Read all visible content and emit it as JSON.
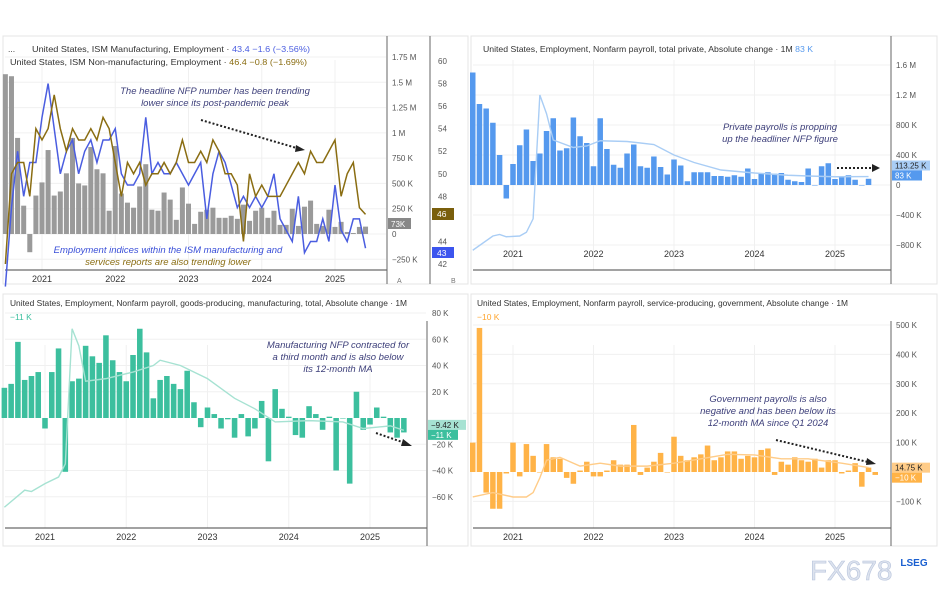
{
  "chart_data": [
    {
      "type": "bar+line",
      "title": "United States, ISM Manufacturing, Employment",
      "title_prefix": "...",
      "ism_mfg": {
        "label": "United States, ISM Manufacturing, Employment ·",
        "value": "43.4",
        "change": "−1.6 (−3.56%)",
        "color": "#4a5de0"
      },
      "ism_svc": {
        "label": "United States, ISM Non-manufacturing, Employment ·",
        "value": "46.4",
        "change": "−0.8 (−1.69%)",
        "color": "#8a6d12"
      },
      "bar_color": "#9a9a9a",
      "last_label": "73K",
      "mfg_badge": "43",
      "svc_badge": "46",
      "axis_a": "A",
      "axis_b": "B",
      "annotation1": [
        "The headline NFP number has been trending",
        "lower since its post-pandemic peak"
      ],
      "annotation2": [
        "Employment indices within the ISM manufacturing and",
        "services reports are also trending lower"
      ],
      "yticks": [
        {
          "v": 1750,
          "l": "1.75 M"
        },
        {
          "v": 1500,
          "l": "1.5 M"
        },
        {
          "v": 1250,
          "l": "1.25 M"
        },
        {
          "v": 1000,
          "l": "1 M"
        },
        {
          "v": 750,
          "l": "750 K"
        },
        {
          "v": 500,
          "l": "500 K"
        },
        {
          "v": 250,
          "l": "250 K"
        },
        {
          "v": 0,
          "l": "0"
        },
        {
          "v": -250,
          "l": "−250 K"
        }
      ],
      "y2ticks": [
        60,
        58,
        56,
        54,
        52,
        50,
        48,
        44,
        42
      ],
      "years": [
        "2021",
        "2022",
        "2023",
        "2024",
        "2025"
      ],
      "values": [
        1580,
        1560,
        950,
        280,
        -180,
        380,
        510,
        830,
        380,
        420,
        600,
        950,
        500,
        480,
        860,
        640,
        600,
        230,
        870,
        400,
        310,
        260,
        470,
        690,
        240,
        230,
        410,
        340,
        140,
        460,
        300,
        100,
        220,
        240,
        260,
        160,
        160,
        180,
        150,
        290,
        130,
        230,
        260,
        160,
        230,
        90,
        90,
        250,
        80,
        270,
        330,
        100,
        80,
        240,
        70,
        120,
        20,
        10,
        70,
        73
      ],
      "mfg": [
        40,
        47,
        52,
        48,
        51,
        51,
        55,
        58,
        54,
        50,
        52,
        53,
        50,
        52,
        53,
        51,
        53,
        53,
        54,
        50,
        49,
        49,
        50,
        55,
        50,
        51,
        50,
        50,
        51,
        50,
        49,
        50,
        51,
        46,
        50,
        52,
        51,
        49,
        47,
        48,
        47,
        48,
        47,
        48,
        50,
        46,
        45,
        44,
        48,
        43,
        44,
        44,
        46,
        44,
        49,
        45,
        44,
        46,
        46,
        43.4
      ],
      "svc": [
        42,
        50,
        51,
        51,
        48,
        54,
        53,
        54,
        57,
        54,
        52,
        54,
        53,
        53,
        54,
        53,
        55,
        54,
        51,
        48,
        51,
        50,
        51,
        49,
        50,
        50,
        51,
        50,
        51,
        53,
        51,
        51,
        52,
        51,
        53,
        52,
        50,
        50,
        49,
        44,
        50,
        48,
        49,
        48,
        48,
        48,
        49,
        50,
        51,
        50,
        52,
        51,
        51,
        52,
        53,
        48,
        50,
        51,
        47,
        46.4
      ]
    },
    {
      "type": "bar",
      "title": "United States, Employment, Nonfarm payroll, total private, Absolute change · 1M",
      "last": "83 K",
      "bar_color": "#5599ee",
      "ma_color": "#a9cdf5",
      "ma_badge": "113.25 K",
      "last_badge": "83 K",
      "annotation": [
        "Private payrolls is propping",
        "up the headliner NFP figure"
      ],
      "yticks": [
        {
          "v": 1600,
          "l": "1.6 M"
        },
        {
          "v": 1200,
          "l": "1.2 M"
        },
        {
          "v": 800,
          "l": "800 K"
        },
        {
          "v": 400,
          "l": "400 K"
        },
        {
          "v": 0,
          "l": "0"
        },
        {
          "v": -400,
          "l": "−400 K"
        },
        {
          "v": -800,
          "l": "−800 K"
        }
      ],
      "years": [
        "2021",
        "2022",
        "2023",
        "2024",
        "2025"
      ],
      "values": [
        1500,
        1080,
        1020,
        830,
        400,
        -180,
        280,
        530,
        740,
        320,
        420,
        720,
        890,
        460,
        490,
        900,
        650,
        560,
        250,
        890,
        480,
        270,
        230,
        420,
        540,
        250,
        230,
        380,
        240,
        140,
        340,
        260,
        50,
        170,
        170,
        170,
        120,
        120,
        110,
        130,
        110,
        220,
        80,
        160,
        170,
        150,
        160,
        70,
        50,
        40,
        220,
        0,
        250,
        290,
        80,
        120,
        130,
        70,
        0,
        83
      ],
      "ma": [
        [
          0,
          -870
        ],
        [
          3,
          -680
        ],
        [
          4,
          -660
        ],
        [
          5,
          -690
        ],
        [
          7,
          -680
        ],
        [
          8,
          -630
        ],
        [
          9,
          -450
        ],
        [
          10,
          1200
        ],
        [
          11,
          950
        ],
        [
          12,
          600
        ],
        [
          15,
          500
        ],
        [
          17,
          520
        ],
        [
          19,
          590
        ],
        [
          23,
          580
        ],
        [
          27,
          540
        ],
        [
          30,
          400
        ],
        [
          33,
          300
        ],
        [
          37,
          200
        ],
        [
          42,
          160
        ],
        [
          47,
          130
        ],
        [
          50,
          120
        ],
        [
          54,
          110
        ],
        [
          59,
          113
        ]
      ]
    },
    {
      "type": "bar",
      "title": "United States, Employment, Nonfarm payroll, goods-producing, manufacturing, total, Absolute change · 1M",
      "last": "−11 K",
      "bar_color": "#3cbf9e",
      "ma_color": "#a6e2d2",
      "ma_badge": "−9.42 K",
      "last_badge": "−11 K",
      "annotation": [
        "Manufacturing NFP contracted for",
        "a third month and is also below",
        "its 12-month MA"
      ],
      "yticks": [
        {
          "v": 80,
          "l": "80 K"
        },
        {
          "v": 60,
          "l": "60 K"
        },
        {
          "v": 40,
          "l": "40 K"
        },
        {
          "v": 20,
          "l": "20 K"
        },
        {
          "v": -20,
          "l": "−20 K"
        },
        {
          "v": -40,
          "l": "−40 K"
        },
        {
          "v": -60,
          "l": "−60 K"
        }
      ],
      "years": [
        "2021",
        "2022",
        "2023",
        "2024",
        "2025"
      ],
      "values": [
        23,
        26,
        58,
        29,
        32,
        35,
        -8,
        35,
        53,
        -41,
        28,
        30,
        55,
        47,
        42,
        63,
        44,
        35,
        28,
        48,
        68,
        50,
        15,
        29,
        32,
        26,
        22,
        36,
        12,
        -7,
        8,
        3,
        -8,
        -1,
        -15,
        3,
        -14,
        -8,
        13,
        -33,
        22,
        7,
        1,
        -13,
        -15,
        9,
        3,
        -9,
        1,
        -40,
        0,
        -50,
        20,
        -9,
        -5,
        8,
        1,
        -11,
        -15,
        -11
      ],
      "ma": [
        [
          0,
          -68
        ],
        [
          3,
          -55
        ],
        [
          4,
          -56
        ],
        [
          6,
          -50
        ],
        [
          8,
          -45
        ],
        [
          9,
          -35
        ],
        [
          10,
          68
        ],
        [
          11,
          55
        ],
        [
          12,
          28
        ],
        [
          15,
          30
        ],
        [
          19,
          35
        ],
        [
          22,
          40
        ],
        [
          23,
          44
        ],
        [
          26,
          40
        ],
        [
          30,
          30
        ],
        [
          34,
          15
        ],
        [
          37,
          7
        ],
        [
          40,
          -3
        ],
        [
          45,
          -2
        ],
        [
          50,
          -3
        ],
        [
          53,
          -8
        ],
        [
          57,
          -6
        ],
        [
          59,
          -9.4
        ]
      ]
    },
    {
      "type": "bar",
      "title": "United States, Employment, Nonfarm payroll, service-producing, government, Absolute change · 1M",
      "last": "−10 K",
      "bar_color": "#ffb347",
      "ma_color": "#ffcc88",
      "ma_badge": "14.75 K",
      "last_badge": "−10 K",
      "annotation": [
        "Government payrolls is also",
        "negative and has been below its",
        "12-month MA since Q1 2024"
      ],
      "yticks": [
        {
          "v": 500,
          "l": "500 K"
        },
        {
          "v": 400,
          "l": "400 K"
        },
        {
          "v": 300,
          "l": "300 K"
        },
        {
          "v": 200,
          "l": "200 K"
        },
        {
          "v": 100,
          "l": "100 K"
        },
        {
          "v": -100,
          "l": "−100 K"
        }
      ],
      "years": [
        "2021",
        "2022",
        "2023",
        "2024",
        "2025"
      ],
      "values": [
        100,
        490,
        -70,
        -125,
        -125,
        -5,
        100,
        -15,
        95,
        55,
        0,
        95,
        50,
        45,
        -20,
        -40,
        5,
        35,
        -15,
        -15,
        5,
        40,
        25,
        25,
        160,
        -10,
        15,
        35,
        65,
        0,
        120,
        55,
        40,
        50,
        60,
        90,
        40,
        50,
        70,
        70,
        45,
        55,
        50,
        75,
        80,
        -10,
        35,
        25,
        50,
        40,
        35,
        45,
        15,
        40,
        40,
        -5,
        5,
        30,
        -50,
        15,
        -10
      ],
      "ma": [
        [
          0,
          -85
        ],
        [
          3,
          -70
        ],
        [
          6,
          -85
        ],
        [
          8,
          -85
        ],
        [
          9,
          -70
        ],
        [
          10,
          -20
        ],
        [
          11,
          40
        ],
        [
          13,
          50
        ],
        [
          16,
          20
        ],
        [
          19,
          30
        ],
        [
          22,
          20
        ],
        [
          26,
          20
        ],
        [
          30,
          30
        ],
        [
          34,
          45
        ],
        [
          38,
          60
        ],
        [
          42,
          58
        ],
        [
          46,
          45
        ],
        [
          50,
          45
        ],
        [
          55,
          30
        ],
        [
          59,
          15
        ]
      ]
    }
  ],
  "watermark": {
    "text": "FX678",
    "brand": "LSEG"
  }
}
